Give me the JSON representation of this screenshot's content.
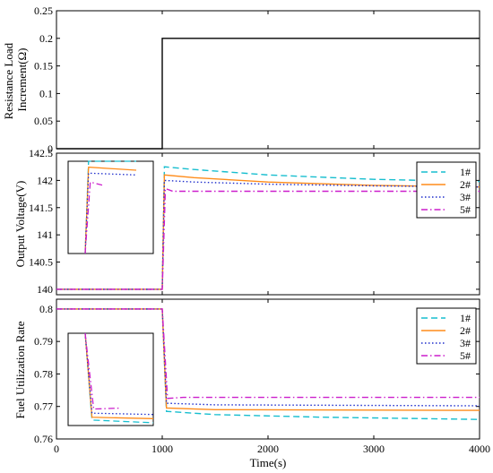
{
  "chart_data": [
    {
      "type": "line",
      "ylabel": "Resistance Load Increment(Ω)",
      "xlim": [
        0,
        4000
      ],
      "ylim": [
        0,
        0.25
      ],
      "yticks": [
        0,
        0.05,
        0.1,
        0.15,
        0.2,
        0.25
      ],
      "ytick_labels": [
        "0",
        "0.05",
        "0.1",
        "0.15",
        "0.2",
        "0.25"
      ],
      "series": [
        {
          "color": "#000000",
          "dash": "solid",
          "points": [
            [
              0,
              0
            ],
            [
              1000,
              0
            ],
            [
              1000,
              0.2
            ],
            [
              4000,
              0.2
            ]
          ]
        }
      ]
    },
    {
      "type": "line",
      "ylabel": "Output Voltage(V)",
      "xlim": [
        0,
        4000
      ],
      "ylim": [
        139.9,
        142.5
      ],
      "yticks": [
        140,
        140.5,
        141,
        141.5,
        142,
        142.5
      ],
      "ytick_labels": [
        "140",
        "140.5",
        "141",
        "141.5",
        "142",
        "142.5"
      ],
      "legend": {
        "position": "top-right",
        "labels": [
          "1#",
          "2#",
          "3#",
          "5#"
        ]
      },
      "inset": true,
      "series": [
        {
          "name": "1#",
          "color": "#17becf",
          "dash": "dashed",
          "points": [
            [
              0,
              140
            ],
            [
              1000,
              140
            ],
            [
              1020,
              142.25
            ],
            [
              1300,
              142.2
            ],
            [
              2000,
              142.1
            ],
            [
              3000,
              142.02
            ],
            [
              4000,
              141.98
            ]
          ]
        },
        {
          "name": "2#",
          "color": "#ff8c1a",
          "dash": "solid",
          "points": [
            [
              0,
              140
            ],
            [
              1000,
              140
            ],
            [
              1020,
              142.1
            ],
            [
              1300,
              142.05
            ],
            [
              2000,
              141.97
            ],
            [
              3000,
              141.91
            ],
            [
              4000,
              141.88
            ]
          ]
        },
        {
          "name": "3#",
          "color": "#1f2ecc",
          "dash": "dotted",
          "points": [
            [
              0,
              140
            ],
            [
              1000,
              140
            ],
            [
              1020,
              142.0
            ],
            [
              1300,
              141.97
            ],
            [
              2000,
              141.93
            ],
            [
              3000,
              141.9
            ],
            [
              4000,
              141.88
            ]
          ]
        },
        {
          "name": "5#",
          "color": "#cc1fcc",
          "dash": "dashdot",
          "points": [
            [
              0,
              140
            ],
            [
              1000,
              140
            ],
            [
              1030,
              141.85
            ],
            [
              1100,
              141.8
            ],
            [
              4000,
              141.8
            ]
          ]
        }
      ]
    },
    {
      "type": "line",
      "xlabel": "Time(s)",
      "ylabel": "Fuel Utilization Rate",
      "xlim": [
        0,
        4000
      ],
      "ylim": [
        0.76,
        0.803
      ],
      "yticks": [
        0.76,
        0.77,
        0.78,
        0.79,
        0.8
      ],
      "ytick_labels": [
        "0.76",
        "0.77",
        "0.78",
        "0.79",
        "0.8"
      ],
      "xticks": [
        0,
        1000,
        2000,
        3000,
        4000
      ],
      "xtick_labels": [
        "0",
        "1000",
        "2000",
        "3000",
        "4000"
      ],
      "legend": {
        "position": "top-right",
        "labels": [
          "1#",
          "2#",
          "3#",
          "5#"
        ]
      },
      "inset": true,
      "series": [
        {
          "name": "1#",
          "color": "#17becf",
          "dash": "dashed",
          "points": [
            [
              0,
              0.8
            ],
            [
              1000,
              0.8
            ],
            [
              1040,
              0.7685
            ],
            [
              1500,
              0.7675
            ],
            [
              2500,
              0.7667
            ],
            [
              4000,
              0.766
            ]
          ]
        },
        {
          "name": "2#",
          "color": "#ff8c1a",
          "dash": "solid",
          "points": [
            [
              0,
              0.8
            ],
            [
              1000,
              0.8
            ],
            [
              1040,
              0.7695
            ],
            [
              1500,
              0.769
            ],
            [
              4000,
              0.7688
            ]
          ]
        },
        {
          "name": "3#",
          "color": "#1f2ecc",
          "dash": "dotted",
          "points": [
            [
              0,
              0.8
            ],
            [
              1000,
              0.8
            ],
            [
              1040,
              0.771
            ],
            [
              1500,
              0.7705
            ],
            [
              4000,
              0.7702
            ]
          ]
        },
        {
          "name": "5#",
          "color": "#cc1fcc",
          "dash": "dashdot",
          "points": [
            [
              0,
              0.8
            ],
            [
              1000,
              0.8
            ],
            [
              1050,
              0.7725
            ],
            [
              1200,
              0.7728
            ],
            [
              4000,
              0.7728
            ]
          ]
        }
      ]
    }
  ]
}
